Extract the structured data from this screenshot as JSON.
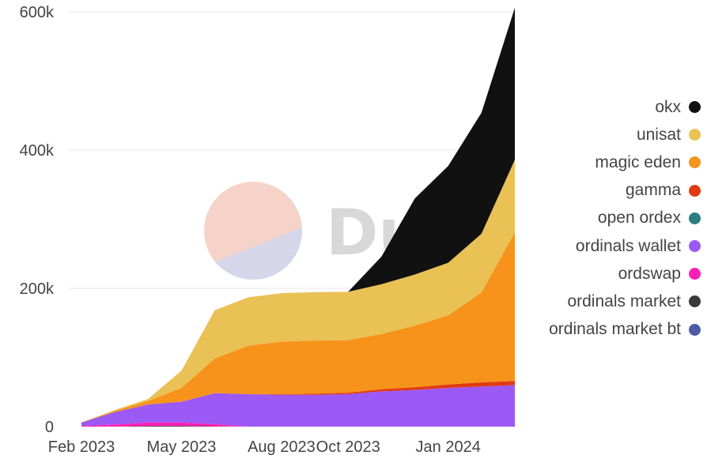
{
  "chart_data": {
    "type": "area",
    "stacked": true,
    "x": [
      "Feb 2023",
      "Mar 2023",
      "Apr 2023",
      "May 2023",
      "Jun 2023",
      "Jul 2023",
      "Aug 2023",
      "Sep 2023",
      "Oct 2023",
      "Nov 2023",
      "Dec 2023",
      "Jan 2024",
      "Feb 2024",
      "Mar 2024"
    ],
    "x_tick_labels": [
      "Feb 2023",
      "May 2023",
      "Aug 2023",
      "Oct 2023",
      "Jan 2024"
    ],
    "y_tick_labels": [
      "0",
      "200k",
      "400k",
      "600k"
    ],
    "y_ticks": [
      0,
      200000,
      400000,
      600000
    ],
    "ylim": [
      0,
      600000
    ],
    "grid": true,
    "legend_position": "right",
    "series": [
      {
        "name": "ordinals market bt",
        "color": "#4f5aa8",
        "values": [
          0,
          0,
          0,
          0,
          0,
          0,
          0,
          0,
          0,
          0,
          0,
          0,
          0,
          0
        ]
      },
      {
        "name": "ordinals market",
        "color": "#3a3a3a",
        "values": [
          0,
          0,
          1000,
          1000,
          500,
          0,
          0,
          0,
          0,
          0,
          0,
          0,
          0,
          0
        ]
      },
      {
        "name": "ordswap",
        "color": "#ff1fb4",
        "values": [
          1000,
          3000,
          5000,
          5000,
          3000,
          0,
          0,
          0,
          0,
          0,
          0,
          0,
          0,
          0
        ]
      },
      {
        "name": "ordinals wallet",
        "color": "#9b59f5",
        "values": [
          5000,
          18000,
          26000,
          30000,
          45000,
          47000,
          46000,
          46000,
          47000,
          51000,
          53000,
          56000,
          58000,
          60000
        ]
      },
      {
        "name": "open ordex",
        "color": "#2a7f7f",
        "values": [
          0,
          0,
          0,
          0,
          0,
          0,
          0,
          0,
          0,
          0,
          0,
          0,
          0,
          0
        ]
      },
      {
        "name": "gamma",
        "color": "#e03a12",
        "values": [
          0,
          0,
          0,
          0,
          0,
          0,
          1000,
          1500,
          2000,
          3000,
          4000,
          5000,
          6000,
          6000
        ]
      },
      {
        "name": "magic eden",
        "color": "#f7931a",
        "values": [
          0,
          2000,
          5000,
          20000,
          50000,
          70000,
          76000,
          77000,
          76000,
          80000,
          89000,
          100000,
          130000,
          215000
        ]
      },
      {
        "name": "unisat",
        "color": "#e9c154",
        "values": [
          0,
          1000,
          3000,
          25000,
          70000,
          70000,
          70000,
          70000,
          70000,
          72000,
          74000,
          76000,
          85000,
          105000
        ]
      },
      {
        "name": "okx",
        "color": "#111111",
        "values": [
          0,
          0,
          0,
          0,
          0,
          0,
          0,
          0,
          0,
          40000,
          110000,
          140000,
          175000,
          220000
        ]
      }
    ],
    "legend_order": [
      "okx",
      "unisat",
      "magic eden",
      "gamma",
      "open ordex",
      "ordinals wallet",
      "ordswap",
      "ordinals market",
      "ordinals market bt"
    ],
    "watermark": "Dune"
  }
}
